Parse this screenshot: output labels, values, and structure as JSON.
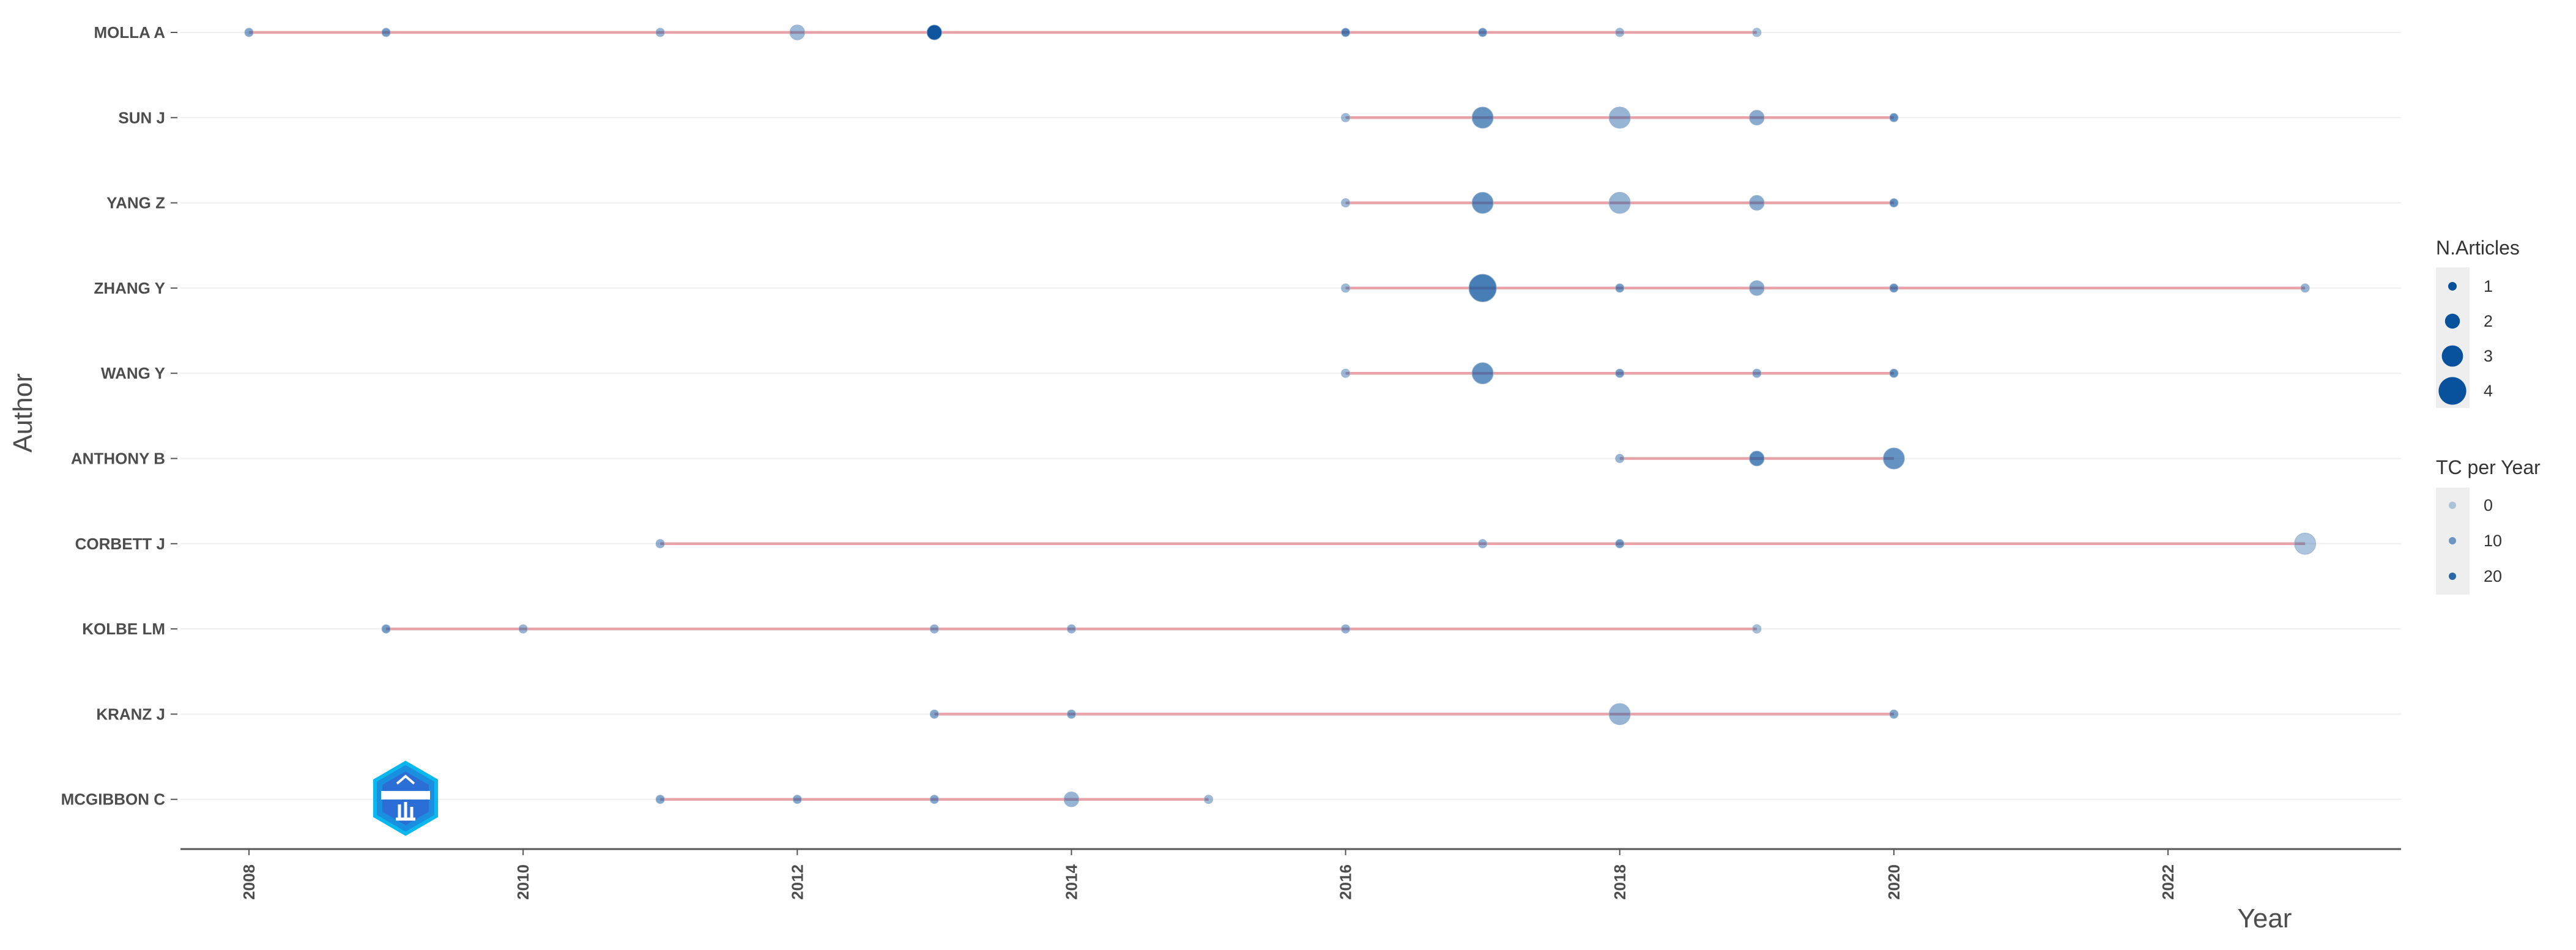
{
  "chart_data": {
    "type": "scatter",
    "xlabel": "Year",
    "ylabel": "Author",
    "xlim": [
      2007.5,
      2023.7
    ],
    "x_ticks": [
      "2008",
      "2010",
      "2012",
      "2014",
      "2016",
      "2018",
      "2020",
      "2022"
    ],
    "grid": "horizontal",
    "colors": {
      "line": "#e8a3a8",
      "point": "#08519c",
      "grid": "#efefef",
      "axis": "#555555"
    },
    "authors": [
      {
        "name": "MOLLA A",
        "points": [
          {
            "year": 2008,
            "articles": 1,
            "tc_per_year": 8
          },
          {
            "year": 2009,
            "articles": 1,
            "tc_per_year": 10
          },
          {
            "year": 2011,
            "articles": 1,
            "tc_per_year": 5
          },
          {
            "year": 2012,
            "articles": 2,
            "tc_per_year": 4
          },
          {
            "year": 2013,
            "articles": 2,
            "tc_per_year": 24
          },
          {
            "year": 2016,
            "articles": 1,
            "tc_per_year": 14
          },
          {
            "year": 2017,
            "articles": 1,
            "tc_per_year": 12
          },
          {
            "year": 2018,
            "articles": 1,
            "tc_per_year": 4
          },
          {
            "year": 2019,
            "articles": 1,
            "tc_per_year": 3
          }
        ]
      },
      {
        "name": "SUN J",
        "points": [
          {
            "year": 2016,
            "articles": 1,
            "tc_per_year": 4
          },
          {
            "year": 2017,
            "articles": 3,
            "tc_per_year": 12
          },
          {
            "year": 2018,
            "articles": 3,
            "tc_per_year": 5
          },
          {
            "year": 2019,
            "articles": 2,
            "tc_per_year": 7
          },
          {
            "year": 2020,
            "articles": 1,
            "tc_per_year": 12
          }
        ]
      },
      {
        "name": "YANG Z",
        "points": [
          {
            "year": 2016,
            "articles": 1,
            "tc_per_year": 4
          },
          {
            "year": 2017,
            "articles": 3,
            "tc_per_year": 12
          },
          {
            "year": 2018,
            "articles": 3,
            "tc_per_year": 5
          },
          {
            "year": 2019,
            "articles": 2,
            "tc_per_year": 7
          },
          {
            "year": 2020,
            "articles": 1,
            "tc_per_year": 12
          }
        ]
      },
      {
        "name": "ZHANG Y",
        "points": [
          {
            "year": 2016,
            "articles": 1,
            "tc_per_year": 4
          },
          {
            "year": 2017,
            "articles": 4,
            "tc_per_year": 16
          },
          {
            "year": 2018,
            "articles": 1,
            "tc_per_year": 10
          },
          {
            "year": 2019,
            "articles": 2,
            "tc_per_year": 7
          },
          {
            "year": 2020,
            "articles": 1,
            "tc_per_year": 12
          },
          {
            "year": 2023,
            "articles": 1,
            "tc_per_year": 5
          }
        ]
      },
      {
        "name": "WANG Y",
        "points": [
          {
            "year": 2016,
            "articles": 1,
            "tc_per_year": 4
          },
          {
            "year": 2017,
            "articles": 3,
            "tc_per_year": 12
          },
          {
            "year": 2018,
            "articles": 1,
            "tc_per_year": 10
          },
          {
            "year": 2019,
            "articles": 1,
            "tc_per_year": 7
          },
          {
            "year": 2020,
            "articles": 1,
            "tc_per_year": 12
          }
        ]
      },
      {
        "name": "ANTHONY B",
        "points": [
          {
            "year": 2018,
            "articles": 1,
            "tc_per_year": 5
          },
          {
            "year": 2019,
            "articles": 2,
            "tc_per_year": 14
          },
          {
            "year": 2020,
            "articles": 3,
            "tc_per_year": 12
          }
        ]
      },
      {
        "name": "CORBETT J",
        "points": [
          {
            "year": 2011,
            "articles": 1,
            "tc_per_year": 6
          },
          {
            "year": 2017,
            "articles": 1,
            "tc_per_year": 5
          },
          {
            "year": 2018,
            "articles": 1,
            "tc_per_year": 10
          },
          {
            "year": 2023,
            "articles": 3,
            "tc_per_year": 2
          }
        ]
      },
      {
        "name": "KOLBE LM",
        "points": [
          {
            "year": 2009,
            "articles": 1,
            "tc_per_year": 10
          },
          {
            "year": 2010,
            "articles": 1,
            "tc_per_year": 5
          },
          {
            "year": 2013,
            "articles": 1,
            "tc_per_year": 6
          },
          {
            "year": 2014,
            "articles": 1,
            "tc_per_year": 6
          },
          {
            "year": 2016,
            "articles": 1,
            "tc_per_year": 6
          },
          {
            "year": 2019,
            "articles": 1,
            "tc_per_year": 3
          }
        ]
      },
      {
        "name": "KRANZ J",
        "points": [
          {
            "year": 2013,
            "articles": 1,
            "tc_per_year": 8
          },
          {
            "year": 2014,
            "articles": 1,
            "tc_per_year": 8
          },
          {
            "year": 2018,
            "articles": 3,
            "tc_per_year": 5
          },
          {
            "year": 2020,
            "articles": 1,
            "tc_per_year": 8
          }
        ]
      },
      {
        "name": "MCGIBBON C",
        "points": [
          {
            "year": 2011,
            "articles": 1,
            "tc_per_year": 8
          },
          {
            "year": 2012,
            "articles": 1,
            "tc_per_year": 8
          },
          {
            "year": 2013,
            "articles": 1,
            "tc_per_year": 8
          },
          {
            "year": 2014,
            "articles": 2,
            "tc_per_year": 5
          },
          {
            "year": 2015,
            "articles": 1,
            "tc_per_year": 4
          }
        ]
      }
    ],
    "legend_articles": {
      "title": "N.Articles",
      "entries": [
        "1",
        "2",
        "3",
        "4"
      ]
    },
    "legend_tc": {
      "title": "TC per Year",
      "entries": [
        "0",
        "10",
        "20"
      ]
    }
  },
  "logo": {
    "name": "BIBLIOMETRIX"
  }
}
